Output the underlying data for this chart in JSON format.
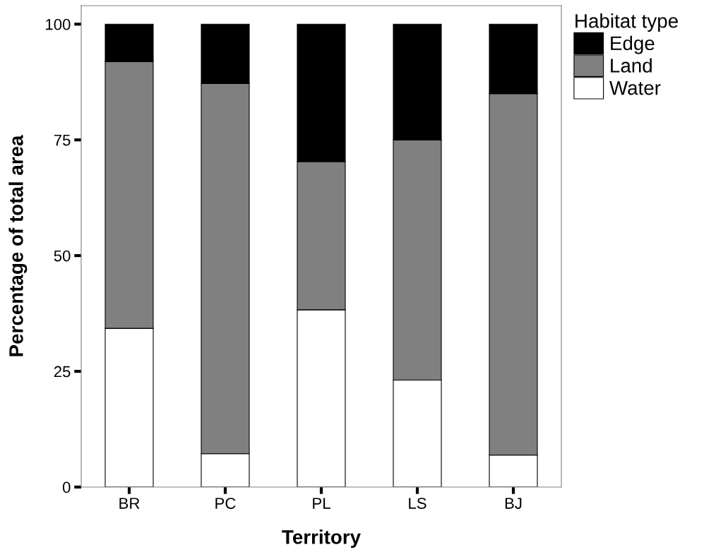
{
  "chart_data": {
    "type": "bar",
    "stacked": true,
    "xlabel": "Territory",
    "ylabel": "Percentage of total area",
    "legend_title": "Habitat type",
    "categories": [
      "BR",
      "PC",
      "PL",
      "LS",
      "BJ"
    ],
    "series": [
      {
        "name": "Water",
        "color": "#ffffff",
        "values": [
          34.3,
          7.2,
          38.3,
          23.1,
          6.9
        ]
      },
      {
        "name": "Land",
        "color": "#808080",
        "values": [
          57.6,
          80.0,
          32.0,
          51.9,
          78.1
        ]
      },
      {
        "name": "Edge",
        "color": "#000000",
        "values": [
          8.1,
          12.8,
          29.7,
          25.0,
          15.0
        ]
      }
    ],
    "ylim": [
      0,
      104
    ],
    "yticks": [
      0,
      25,
      50,
      75,
      100
    ],
    "grid": false,
    "legend": "top right"
  }
}
